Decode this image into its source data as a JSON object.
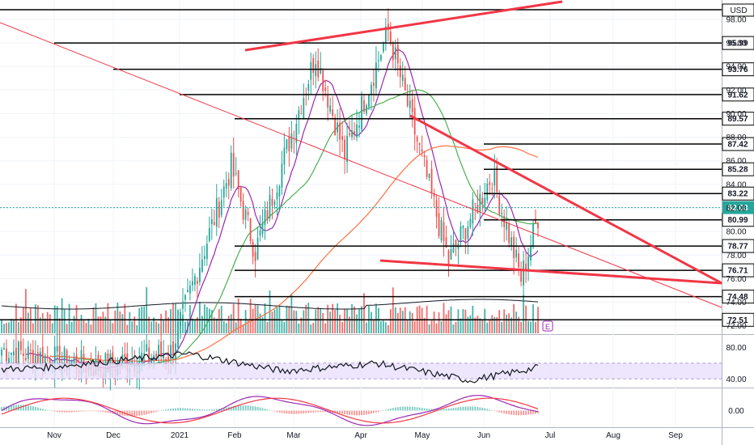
{
  "chart_data": {
    "type": "candlestick",
    "currency": "USD",
    "x_axis": {
      "tick_labels": [
        "Nov",
        "Dec",
        "2021",
        "Feb",
        "Mar",
        "Apr",
        "May",
        "Jun",
        "Jul",
        "Aug",
        "Sep"
      ]
    },
    "price_axis": {
      "range": [
        71.5,
        99.5
      ],
      "tick_labels": [
        "72.00",
        "74.00",
        "76.00",
        "78.00",
        "80.00",
        "82.00",
        "84.00",
        "86.00",
        "88.00",
        "90.00",
        "92.00",
        "94.00",
        "96.00",
        "98.00"
      ],
      "grid": true
    },
    "horizontal_levels": [
      {
        "label": "95.99",
        "value": 95.99
      },
      {
        "label": "93.76",
        "value": 93.76
      },
      {
        "label": "91.62",
        "value": 91.62
      },
      {
        "label": "89.57",
        "value": 89.57
      },
      {
        "label": "87.42",
        "value": 87.42
      },
      {
        "label": "85.28",
        "value": 85.28
      },
      {
        "label": "83.22",
        "value": 83.22
      },
      {
        "label": "80.99",
        "value": 80.99
      },
      {
        "label": "78.77",
        "value": 78.77
      },
      {
        "label": "76.71",
        "value": 76.71
      },
      {
        "label": "74.48",
        "value": 74.48
      },
      {
        "label": "72.51",
        "value": 72.51
      }
    ],
    "last_price": {
      "label": "82.03",
      "value": 82.03,
      "color": "#26a69a"
    },
    "candles": {
      "up_color": "#26a69a",
      "down_color": "#ef5350",
      "ohlc_segments": [
        {
          "name": "oct-nov",
          "from": 70.0,
          "to": 68.5,
          "count": 40
        },
        {
          "name": "dec",
          "from": 68.5,
          "to": 69.8,
          "count": 30
        },
        {
          "name": "jan-rally",
          "from": 69.8,
          "to": 85.5,
          "count": 25
        },
        {
          "name": "feb-pullback",
          "from": 85.5,
          "to": 78.3,
          "count": 10
        },
        {
          "name": "feb-mar-rally",
          "from": 78.3,
          "to": 95.0,
          "count": 25
        },
        {
          "name": "mar-dip",
          "from": 95.0,
          "to": 86.5,
          "count": 12
        },
        {
          "name": "apr-rally",
          "from": 86.5,
          "to": 97.0,
          "count": 18
        },
        {
          "name": "apr-may-decline",
          "from": 97.0,
          "to": 77.5,
          "count": 25
        },
        {
          "name": "may-bounce",
          "from": 77.5,
          "to": 84.8,
          "count": 18
        },
        {
          "name": "jun-drop",
          "from": 84.8,
          "to": 76.0,
          "count": 12
        },
        {
          "name": "jun-recover",
          "from": 76.0,
          "to": 82.03,
          "count": 8
        }
      ]
    },
    "moving_averages": [
      {
        "color": "#9c27b0",
        "period": 10
      },
      {
        "color": "#4caf50",
        "period": 30
      },
      {
        "color": "#ff7043",
        "period": 100
      }
    ],
    "volume": {
      "up_color": "#26a69a",
      "down_color": "#ef5350",
      "average_line_color": "#131722"
    },
    "trend_lines_color": "#f23645",
    "event_badge": "E",
    "rsi": {
      "range": [
        30,
        95
      ],
      "band": [
        40,
        60
      ],
      "tick_labels": [
        "80.00",
        "40.00"
      ],
      "line_color": "#131722",
      "band_color": "#e9e0fb",
      "values_segments": [
        {
          "from": 52,
          "to": 55,
          "count": 20
        },
        {
          "from": 55,
          "to": 72,
          "count": 60
        },
        {
          "from": 72,
          "to": 50,
          "count": 40
        },
        {
          "from": 50,
          "to": 60,
          "count": 40
        },
        {
          "from": 60,
          "to": 38,
          "count": 40
        },
        {
          "from": 38,
          "to": 55,
          "count": 30
        }
      ]
    },
    "macd": {
      "tick_labels": [
        "0.00"
      ],
      "macd_color": "#9c27b0",
      "signal_color": "#f23645",
      "hist_up_color": "#26a69a",
      "hist_down_color": "#ef5350"
    }
  }
}
